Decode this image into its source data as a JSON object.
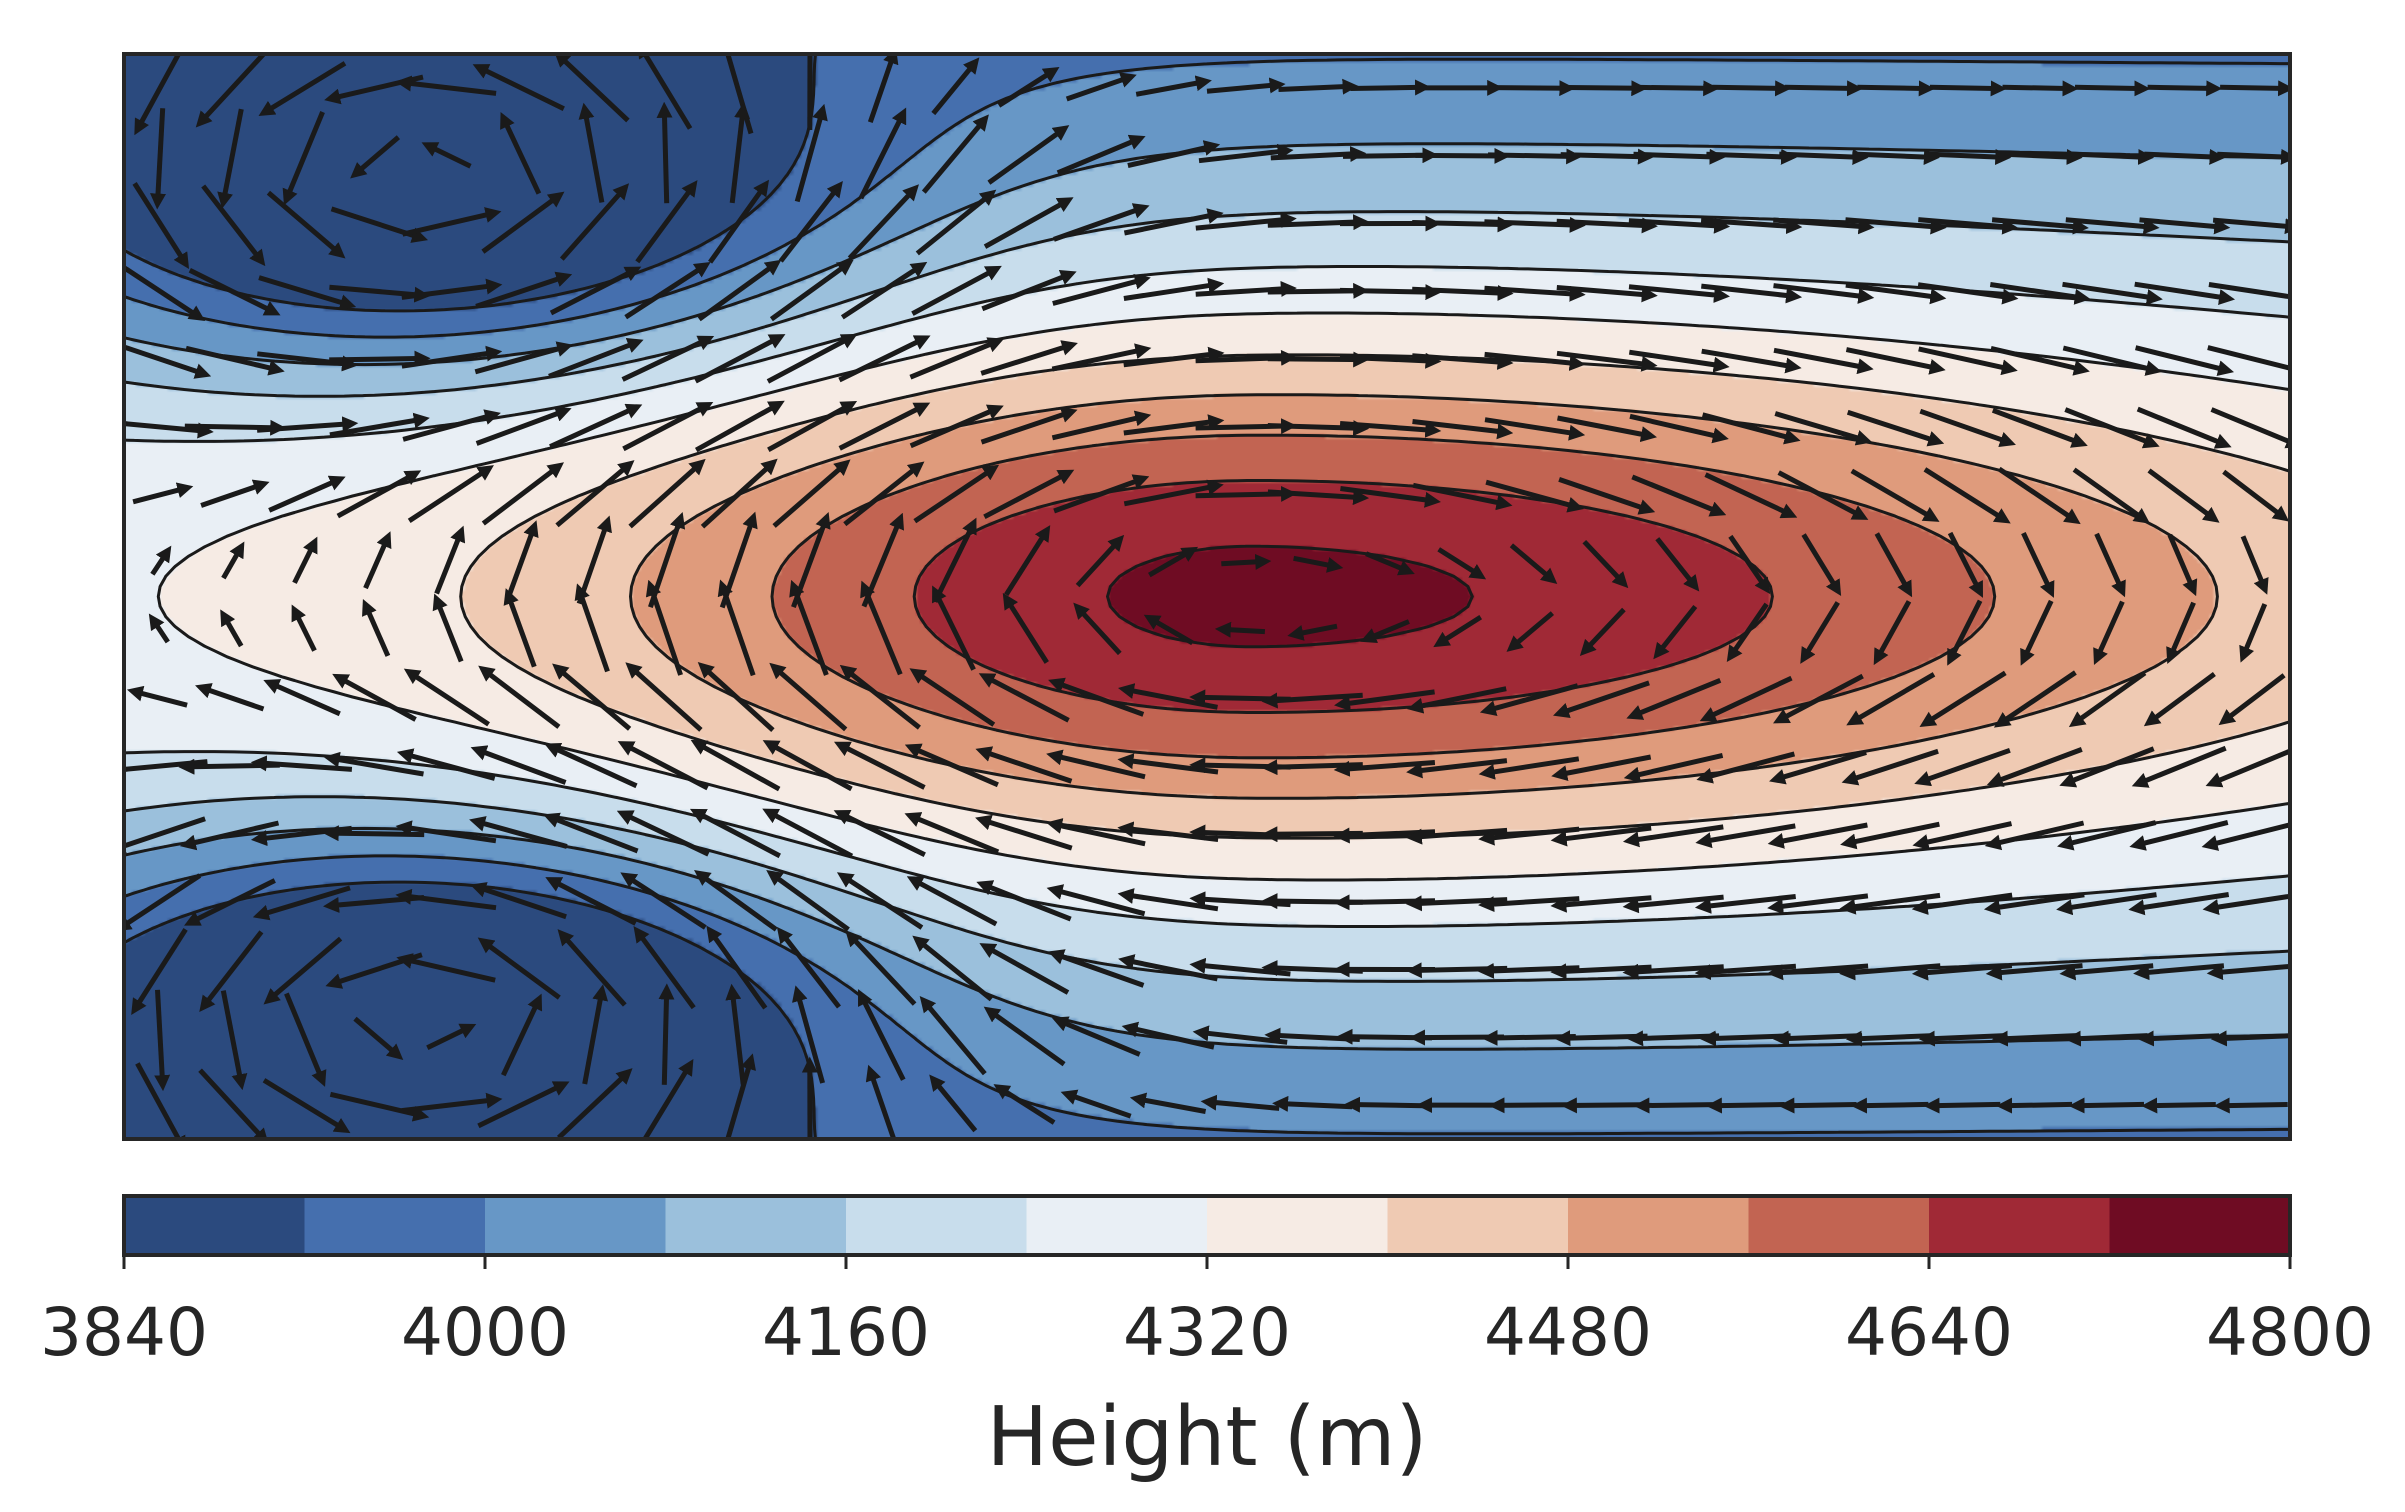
{
  "chart_data": {
    "type": "heatmap",
    "subtype": "filled-contour-with-wind-vectors",
    "title": "",
    "xlabel": "",
    "ylabel": "",
    "x_ticks_shown": false,
    "y_ticks_shown": false,
    "colorbar": {
      "label": "Height (m)",
      "orientation": "horizontal",
      "placement": "bottom",
      "range": [
        3840,
        4800
      ],
      "levels": [
        3840,
        3920,
        4000,
        4080,
        4160,
        4240,
        4320,
        4400,
        4480,
        4560,
        4640,
        4720,
        4800
      ],
      "tick_values": [
        3840,
        4000,
        4160,
        4320,
        4480,
        4640,
        4800
      ],
      "tick_labels": [
        "3840",
        "4000",
        "4160",
        "4320",
        "4480",
        "4640",
        "4800"
      ],
      "colors": [
        "#2b4a7e",
        "#456fae",
        "#6797c6",
        "#9bc0dc",
        "#c8ddec",
        "#e9eff5",
        "#f6ebe4",
        "#efcab3",
        "#df9b7c",
        "#c26452",
        "#a02936",
        "#6f0c23"
      ]
    },
    "field": {
      "description_values": "geopotential height (m)",
      "background": 4300,
      "ridge": {
        "center_fraction_x": 0.52,
        "center_fraction_y": 0.5,
        "peak": 4750
      },
      "troughs": [
        {
          "center_fraction_x": 0.14,
          "center_fraction_y": 0.14,
          "min": 3880
        },
        {
          "center_fraction_x": 0.14,
          "center_fraction_y": 0.86,
          "min": 3880
        }
      ],
      "contour_interval": 80
    },
    "vectors": {
      "type": "geostrophic wind arrows",
      "color": "#1a1a1a",
      "grid_cols": 30,
      "grid_rows": 16
    }
  }
}
